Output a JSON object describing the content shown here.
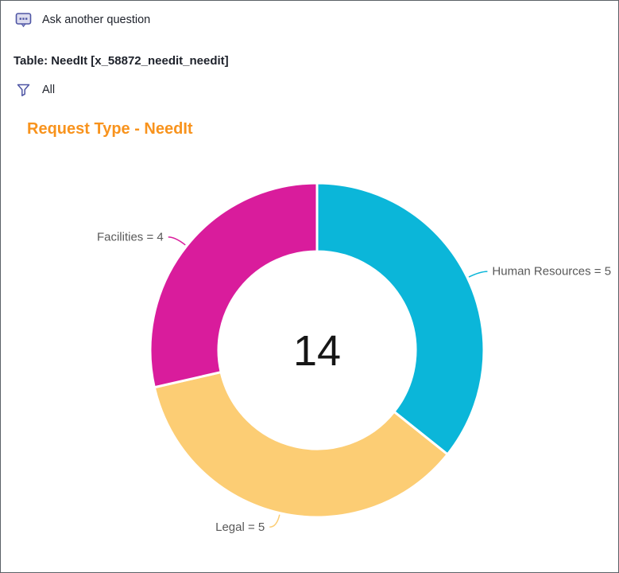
{
  "header": {
    "ask_button": {
      "label": "Ask another question",
      "icon": "chat-bubble-icon"
    },
    "table_label": "Table: NeedIt [x_58872_needit_needit]",
    "filter": {
      "label": "All",
      "icon": "filter-funnel-icon"
    }
  },
  "chart_title": {
    "text": "Request Type - NeedIt",
    "color": "#F8931D"
  },
  "chart_data": {
    "type": "pie",
    "variant": "donut",
    "title": "Request Type - NeedIt",
    "categories": [
      "Human Resources",
      "Legal",
      "Facilities"
    ],
    "values": [
      5,
      5,
      4
    ],
    "labels": [
      "Human Resources = 5",
      "Legal = 5",
      "Facilities = 4"
    ],
    "colors": [
      "#0BB6D9",
      "#FCCD74",
      "#D91C9C"
    ],
    "total": 14,
    "center_label": "14",
    "start_angle_deg": 0,
    "direction": "clockwise",
    "inner_radius_ratio": 0.59,
    "legend_position": "none",
    "label_style": "outside-callout"
  },
  "colors": {
    "title_orange": "#F8931D",
    "icon_indigo": "#4E55A4",
    "header_text": "#1E222B",
    "callout_label_gray": "#595959",
    "center_number": "#161616",
    "window_border": "#5B6167",
    "background": "#FFFFFF"
  }
}
